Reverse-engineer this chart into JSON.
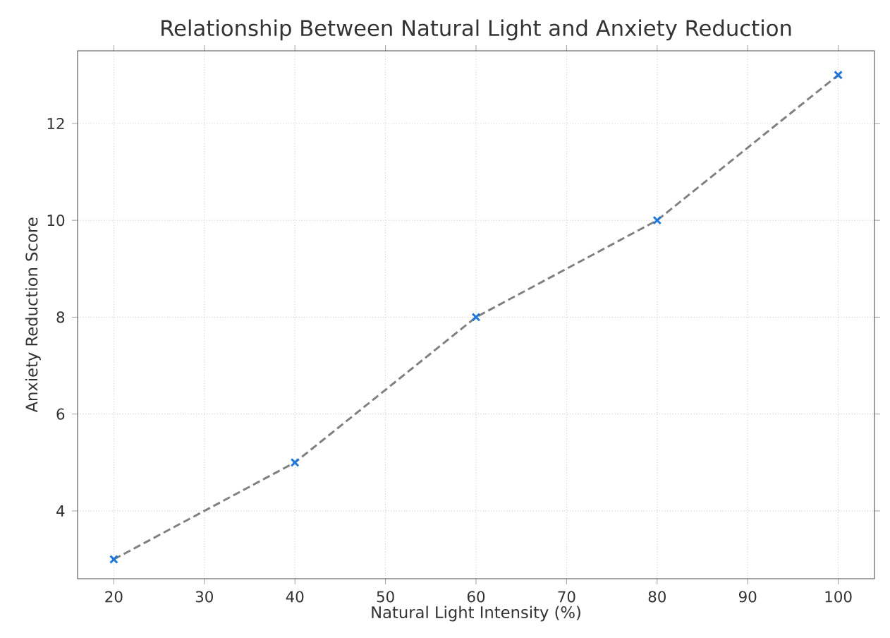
{
  "chart_data": {
    "type": "line",
    "title": "Relationship Between Natural Light and Anxiety Reduction",
    "xlabel": "Natural Light Intensity (%)",
    "ylabel": "Anxiety Reduction Score",
    "x": [
      20,
      40,
      60,
      80,
      100
    ],
    "series": [
      {
        "color": "#808080",
        "values": [
          3,
          5,
          8,
          10,
          13
        ]
      }
    ],
    "xlim": [
      16,
      104
    ],
    "ylim": [
      2.6,
      13.5
    ],
    "xticks": [
      20,
      30,
      40,
      50,
      60,
      70,
      80,
      90,
      100
    ],
    "yticks": [
      4,
      6,
      8,
      10,
      12
    ],
    "grid": true,
    "marker": "cross",
    "line_style": "dashed"
  }
}
